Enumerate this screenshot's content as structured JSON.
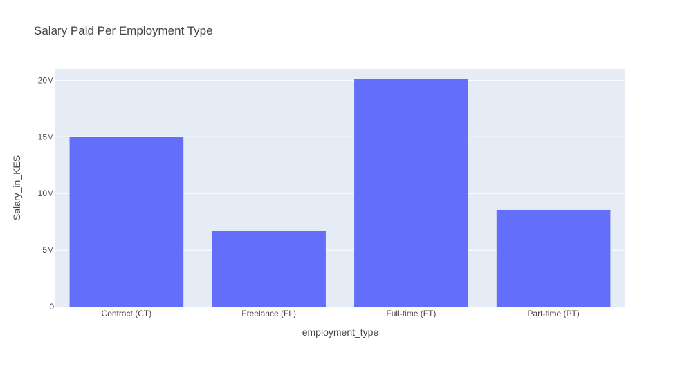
{
  "chart_data": {
    "type": "bar",
    "title": "Salary Paid Per Employment Type",
    "xlabel": "employment_type",
    "ylabel": "Salary_in_KES",
    "categories": [
      "Contract (CT)",
      "Freelance (FL)",
      "Full-time (FT)",
      "Part-time (PT)"
    ],
    "values": [
      15000000,
      6700000,
      20100000,
      8550000
    ],
    "ylim": [
      0,
      21000000
    ],
    "yticks": [
      {
        "value": 0,
        "label": "0"
      },
      {
        "value": 5000000,
        "label": "5M"
      },
      {
        "value": 10000000,
        "label": "10M"
      },
      {
        "value": 15000000,
        "label": "15M"
      },
      {
        "value": 20000000,
        "label": "20M"
      }
    ],
    "grid": true,
    "legend": "none",
    "colors": {
      "bar": "#636efa",
      "plot_background": "#e5ecf6",
      "grid": "#ffffff",
      "text": "#444444"
    }
  }
}
